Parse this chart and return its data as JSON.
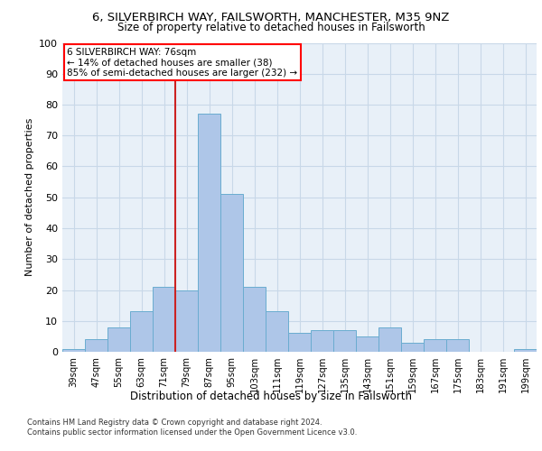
{
  "title1": "6, SILVERBIRCH WAY, FAILSWORTH, MANCHESTER, M35 9NZ",
  "title2": "Size of property relative to detached houses in Failsworth",
  "xlabel": "Distribution of detached houses by size in Failsworth",
  "ylabel": "Number of detached properties",
  "categories": [
    "39sqm",
    "47sqm",
    "55sqm",
    "63sqm",
    "71sqm",
    "79sqm",
    "87sqm",
    "95sqm",
    "103sqm",
    "111sqm",
    "119sqm",
    "127sqm",
    "135sqm",
    "143sqm",
    "151sqm",
    "159sqm",
    "167sqm",
    "175sqm",
    "183sqm",
    "191sqm",
    "199sqm"
  ],
  "values": [
    1,
    4,
    8,
    13,
    21,
    20,
    77,
    51,
    21,
    13,
    6,
    7,
    7,
    5,
    8,
    3,
    4,
    4,
    0,
    0,
    1
  ],
  "bar_color": "#aec6e8",
  "bar_edge_color": "#6aacd0",
  "red_line_x": 4.5,
  "annotation_text": "6 SILVERBIRCH WAY: 76sqm\n← 14% of detached houses are smaller (38)\n85% of semi-detached houses are larger (232) →",
  "annotation_box_color": "white",
  "annotation_box_edge_color": "red",
  "red_line_color": "#cc2222",
  "ylim": [
    0,
    100
  ],
  "yticks": [
    0,
    10,
    20,
    30,
    40,
    50,
    60,
    70,
    80,
    90,
    100
  ],
  "grid_color": "#c8d8e8",
  "background_color": "#e8f0f8",
  "footnote1": "Contains HM Land Registry data © Crown copyright and database right 2024.",
  "footnote2": "Contains public sector information licensed under the Open Government Licence v3.0."
}
